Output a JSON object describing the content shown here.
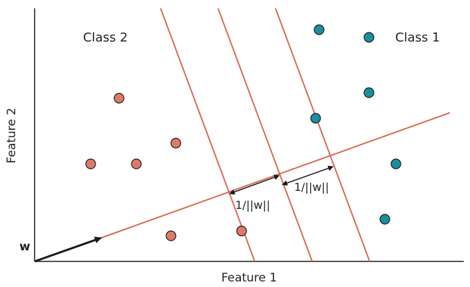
{
  "axes": {
    "x_label": "Feature 1",
    "y_label": "Feature 2"
  },
  "legend": {
    "class2": "Class 2",
    "class1": "Class 1"
  },
  "vector_label": "w",
  "margin_labels": {
    "left": "1/||w||",
    "right": "1/||w||"
  },
  "colors": {
    "class2": "#e07a68",
    "class1": "#1a8fa0",
    "line": "#d96a55",
    "axis": "#1a1a1a"
  }
}
